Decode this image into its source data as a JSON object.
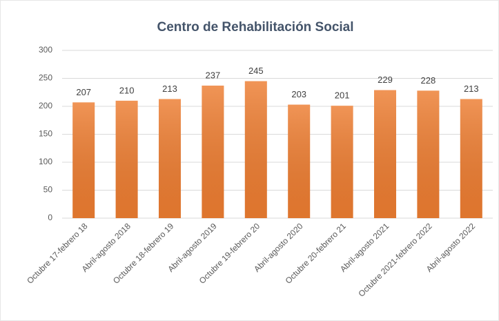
{
  "chart_data": {
    "type": "bar",
    "title": "Centro de Rehabilitación Social",
    "categories": [
      "Octubre 17-febrero 18",
      "Abril-agosto 2018",
      "Octubre 18-febrero 19",
      "Abril-agosto 2019",
      "Octubre 19-febrero 20",
      "Abril-agosto 2020",
      "Octubre 20-febrero 21",
      "Abril-agosto 2021",
      "Octubre 2021-febrero 2022",
      "Abril-agosto 2022"
    ],
    "values": [
      207,
      210,
      213,
      237,
      245,
      203,
      201,
      229,
      228,
      213
    ],
    "color": "#ed7d31",
    "ylim": [
      0,
      300
    ],
    "yticks": [
      0,
      50,
      100,
      150,
      200,
      250,
      300
    ],
    "grid": true
  }
}
